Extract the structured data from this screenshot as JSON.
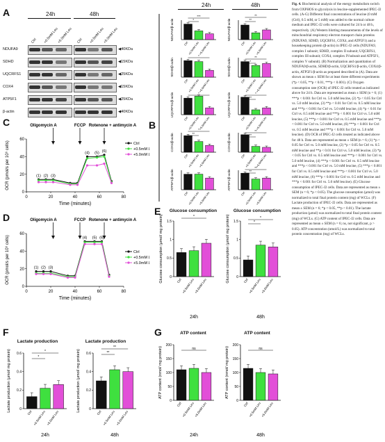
{
  "panel_labels": {
    "a": "A",
    "b": "B",
    "c": "C",
    "d": "D",
    "e": "E",
    "f": "F",
    "g": "G"
  },
  "timepoints": {
    "t24": "24h",
    "t48": "48h"
  },
  "lanes": [
    "Ctrl",
    "+0.5mM Leu",
    "+5.0mM Leu"
  ],
  "blot_proteins": [
    "NDUFA9",
    "SDHD",
    "UQCRFS1",
    "COX4",
    "ATP5F1",
    "β-actin"
  ],
  "blot_kda": [
    "40KDa",
    "15KDa",
    "25KDa",
    "15KDa",
    "25KDa",
    "40KDa"
  ],
  "ocr": {
    "ylabel": "OCR (pmol/s per 10⁶ cells)",
    "xlabel": "Time (minutes)",
    "oligomycin": "Oligomycin A",
    "fccp": "FCCP",
    "rotenone": "Rotenone + antimycin A",
    "stage_labels": [
      "(1)",
      "(2)",
      "(3)",
      "(4)",
      "(5)",
      "(6)"
    ],
    "legend": [
      "Ctrl",
      "+0.5mM Leu",
      "+5.0mM Leu"
    ],
    "c_legend": [
      "Ctrl",
      "+0.5mM Leu",
      "+5.0mM Leu"
    ]
  },
  "titles": {
    "glucose": "Glucose consumption",
    "lactate": "Lactate production",
    "atp": "ATP content"
  },
  "ylabels": {
    "glucose": "Glucose consumption (μmol/ mg protein)",
    "lactate": "Lactate production (μmol/ mg protein)",
    "atp": "ATP content (nmol/ mg protein)",
    "ndufa9": "NDUFA9/β-actin",
    "sdhd": "SDHD/β-actin",
    "uqcrfs1": "UQCRFS1/β-actin",
    "cox4": "COX4/β-actin",
    "atp5f1": "ATP5F1/β-actin"
  },
  "ns": "ns",
  "caption": {
    "fig": "Fig. 4.",
    "text": "Biochemical analysis of the energy metabolism switch from OXPHOS to glycolysis in leucine-supplemented IPEC-J2 cells. (A-G) Different final concentrations of leucine (0 mM (Ctrl), 0.5 mM, or 5 mM) was added to the normal culture medium and IPEC-J2 cells were cultured for 24 h or 48 h, respectively. (A) Western blotting measurements of the levels of mitochondrial respiratory electron transport chain proteins (NDUFA9, SDHD, UQCRFS1, COX4, and ATP5F1) and a housekeeping protein (β-actin) in IPEC-J2 cells (NDUFA9, complex I subunit; SDHD, complex II subunit; UQCRFS1, complex III subunit; COX4, complex IVsubunit and ATP5F1, complex V subunit). (B) Normalization and quantitation of NDUFA9/β-actin, SDHD/β-actin, UQCRFS1/β-actin, COX4/β-actin, ATP5F1/β-actin as prepared described in (A). Data are shown as mean ± SEM for at least three different experiments (*p < 0.05, **p < 0.01, ***p < 0.001). (C) Oxygen consumption rate (OCR) of IPEC-J2 cells treated as indicated above for 24 h. Data are represented as mean ± SEM (n = 6; (1) ***p < 0.001 for Ctrl vs. 5.0 mM leucine, (2) *p < 0.05 for Ctrl vs. 5.0 mM leucine, (3) **p < 0.01 for Ctrl vs. 0.5 mM leucine and ***p < 0.001 for Ctrl vs. 5.0 mM leucine, (4) *p < 0.01 for Ctrl vs. 0.5 mM leucine and ***p < 0.001 for Ctrl vs. 5.0 mM leucine, (5) ***p < 0.001 for Ctrl vs. 0.5 mM leucine and ***p < 0.001 for Ctrl vs. 5.0 mM leucine, (6) ***p < 0.001 for Ctrl vs. 0.5 mM leucine and ***p < 0.001 for Ctrl vs. 5.0 mM leucine). (D) OCR of IPEC-J2 cells treated as indicated above for 48 h. Data are represented as mean ± SEM (n = 6; (1) *p < 0.05 for Ctrl vs. 5.0 mM leucine, (2) *p < 0.05 for Ctrl vs. 0.5 mM leucine and **p < 0.01 for Ctrl vs. 5.0 mM leucine, (3) *p < 0.05 for Ctrl vs. 0.5 mM leucine and ***p < 0.001 for Ctrl vs. 5.0 mM leucine, (4) ***p < 0.001 for Ctrl vs. 0.5 mM leucine and ***p < 0.001 for Ctrl vs. 5.0 mM leucine, (5) ***p < 0.001 for Ctrl vs. 0.5 mM leucine and ***p < 0.001 for Ctrl vs. 5.0 mM leucine, (6) ***p < 0.001 for Ctrl vs. 0.5 mM leucine and ***p < 0.001 for Ctrl vs. 5.0 mM leucine). (E) Glucose consumption of IPEC-J2 cells. Data are represented as mean ± SEM (n = 6; *p < 0.05). The glucose consumption (μmol) was normalized to total final protein content (mg) of WCLs. (F) Lactate production of IPEC-J2 cells. Data are represented as mean ± SEM (n = 6; *p < 0.05, **p < 0.01). The lactate production (μmol) was normalized to total final protein content (mg) of WCLs. (G) ATP content of IPEC-J2 cells. Data are represented as mean ± SEM (n = 6; ns, not significant, p > 0.05). ATP concentration (nmol/L) was normalized to total protein concentration (mg) of WCLs."
  },
  "chart_data": [
    {
      "type": "bar",
      "id": "B-NDUFA9-24h",
      "categories": [
        "Ctrl",
        "+0.5mM Leu",
        "+5.0mM Leu"
      ],
      "values": [
        0.8,
        0.45,
        0.3
      ]
    },
    {
      "type": "bar",
      "id": "B-NDUFA9-48h",
      "categories": [
        "Ctrl",
        "+0.5mM Leu",
        "+5.0mM Leu"
      ],
      "values": [
        0.75,
        0.35,
        0.5
      ]
    },
    {
      "type": "bar",
      "id": "B-SDHD-24h",
      "categories": [
        "Ctrl",
        "+0.5mM Leu",
        "+5.0mM Leu"
      ],
      "values": [
        0.85,
        0.8,
        0.35
      ]
    },
    {
      "type": "bar",
      "id": "B-SDHD-48h",
      "categories": [
        "Ctrl",
        "+0.5mM Leu",
        "+5.0mM Leu"
      ],
      "values": [
        0.8,
        0.6,
        0.7
      ]
    },
    {
      "type": "bar",
      "id": "B-UQCRFS1-24h",
      "categories": [
        "Ctrl",
        "+0.5mM Leu",
        "+5.0mM Leu"
      ],
      "values": [
        0.85,
        0.95,
        0.35
      ]
    },
    {
      "type": "bar",
      "id": "B-UQCRFS1-48h",
      "categories": [
        "Ctrl",
        "+0.5mM Leu",
        "+5.0mM Leu"
      ],
      "values": [
        0.9,
        0.25,
        0.35
      ]
    },
    {
      "type": "bar",
      "id": "B-COX4-24h",
      "categories": [
        "Ctrl",
        "+0.5mM Leu",
        "+5.0mM Leu"
      ],
      "values": [
        0.85,
        0.55,
        0.35
      ]
    },
    {
      "type": "bar",
      "id": "B-COX4-48h",
      "categories": [
        "Ctrl",
        "+0.5mM Leu",
        "+5.0mM Leu"
      ],
      "values": [
        0.9,
        0.3,
        0.25
      ]
    },
    {
      "type": "bar",
      "id": "B-ATP5F1-24h",
      "categories": [
        "Ctrl",
        "+0.5mM Leu",
        "+5.0mM Leu"
      ],
      "values": [
        0.8,
        0.8,
        0.6
      ]
    },
    {
      "type": "bar",
      "id": "B-ATP5F1-48h",
      "categories": [
        "Ctrl",
        "+0.5mM Leu",
        "+5.0mM Leu"
      ],
      "values": [
        0.85,
        0.55,
        0.6
      ]
    },
    {
      "type": "line",
      "id": "C",
      "x": [
        10,
        16,
        22,
        36,
        42,
        50,
        58,
        64,
        70
      ],
      "series": [
        {
          "name": "Ctrl",
          "values": [
            14,
            14,
            14,
            10,
            10,
            40,
            40,
            42,
            12
          ]
        },
        {
          "name": "+0.5mM Leu",
          "values": [
            13,
            13,
            13,
            9,
            9,
            38,
            39,
            40,
            11
          ]
        },
        {
          "name": "+5.0mM Leu",
          "values": [
            11,
            11,
            11,
            8,
            8,
            30,
            30,
            32,
            10
          ]
        }
      ],
      "xlabel": "Time (minutes)",
      "ylabel": "OCR (pmol/s per 10⁶ cells)",
      "xlim": [
        0,
        80
      ],
      "ylim": [
        0,
        60
      ],
      "xticks": [
        0,
        20,
        40,
        60,
        80
      ],
      "yticks": [
        0,
        20,
        40,
        60
      ]
    },
    {
      "type": "line",
      "id": "D",
      "x": [
        8,
        14,
        20,
        34,
        40,
        48,
        56,
        62,
        68
      ],
      "series": [
        {
          "name": "Ctrl",
          "values": [
            17,
            17,
            17,
            12,
            12,
            51,
            51,
            51,
            13
          ]
        },
        {
          "name": "+0.5mM Leu",
          "values": [
            15,
            15,
            15,
            11,
            11,
            50,
            50,
            50,
            12
          ]
        },
        {
          "name": "+5.0mM Leu",
          "values": [
            14,
            14,
            14,
            10,
            10,
            48,
            48,
            48,
            11
          ]
        }
      ],
      "xlabel": "Time (minutes)",
      "ylabel": "OCR (pmol/s per 10⁶ cells)",
      "xlim": [
        0,
        80
      ],
      "ylim": [
        0,
        60
      ],
      "xticks": [
        0,
        20,
        40,
        60,
        80
      ],
      "yticks": [
        0,
        20,
        40,
        60
      ]
    },
    {
      "type": "bar",
      "id": "E-24h",
      "categories": [
        "Ctrl",
        "+0.5mM Leu",
        "+5.0mM Leu"
      ],
      "values": [
        0.65,
        0.7,
        0.9
      ],
      "ylim": [
        0,
        1.5
      ],
      "yticks": [
        0,
        0.5,
        1.0,
        1.5
      ]
    },
    {
      "type": "bar",
      "id": "E-48h",
      "categories": [
        "Ctrl",
        "+0.5mM Leu",
        "+5.0mM Leu"
      ],
      "values": [
        0.45,
        0.85,
        0.8
      ],
      "ylim": [
        0,
        1.5
      ],
      "yticks": [
        0,
        0.5,
        1.0,
        1.5
      ]
    },
    {
      "type": "bar",
      "id": "F-24h",
      "categories": [
        "Ctrl",
        "+0.5mM Leu",
        "+5.0mM Leu"
      ],
      "values": [
        0.13,
        0.22,
        0.26
      ],
      "ylim": [
        0,
        0.6
      ],
      "yticks": [
        0,
        0.2,
        0.4,
        0.6
      ]
    },
    {
      "type": "bar",
      "id": "F-48h",
      "categories": [
        "Ctrl",
        "+0.5mM Leu",
        "+5.0mM Leu"
      ],
      "values": [
        0.3,
        0.42,
        0.4
      ],
      "ylim": [
        0,
        0.6
      ],
      "yticks": [
        0,
        0.2,
        0.4,
        0.6
      ]
    },
    {
      "type": "bar",
      "id": "G-24h",
      "categories": [
        "Ctrl",
        "+0.5mM Leu",
        "+5.0mM Leu"
      ],
      "values": [
        110,
        115,
        100
      ],
      "ylim": [
        0,
        200
      ],
      "yticks": [
        0,
        50,
        100,
        150,
        200
      ]
    },
    {
      "type": "bar",
      "id": "G-48h",
      "categories": [
        "Ctrl",
        "+0.5mM Leu",
        "+5.0mM Leu"
      ],
      "values": [
        115,
        100,
        95
      ],
      "ylim": [
        0,
        200
      ],
      "yticks": [
        0,
        50,
        100,
        150,
        200
      ]
    }
  ],
  "colors": {
    "ctrl": "#111111",
    "low": "#3fe03f",
    "high": "#e24fd8"
  }
}
